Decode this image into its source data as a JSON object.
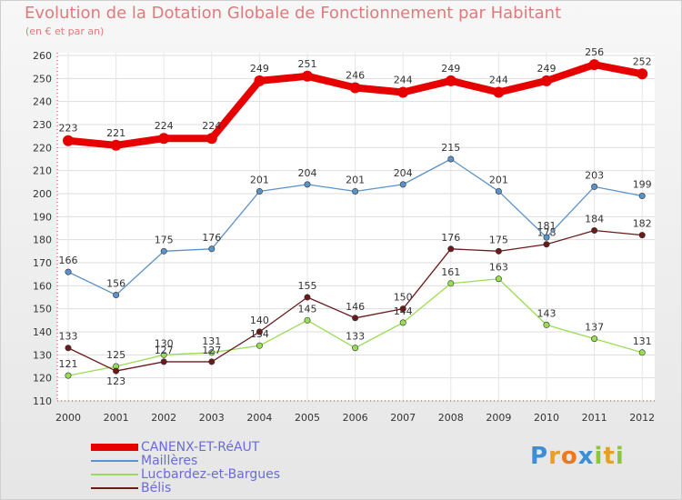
{
  "title": "Evolution de la Dotation Globale de Fonctionnement par Habitant",
  "subtitle": "(en € et par an)",
  "chart_data": {
    "type": "line",
    "x": [
      "2000",
      "2001",
      "2002",
      "2003",
      "2004",
      "2005",
      "2006",
      "2007",
      "2008",
      "2009",
      "2010",
      "2011",
      "2012"
    ],
    "ylim": [
      110,
      260
    ],
    "yticks": [
      110,
      120,
      130,
      140,
      150,
      160,
      170,
      180,
      190,
      200,
      210,
      220,
      230,
      240,
      250,
      260
    ],
    "grid": true,
    "series": [
      {
        "name": "CANENX-ET-RéAUT",
        "color": "#e60000",
        "values": [
          223,
          221,
          224,
          224,
          249,
          251,
          246,
          244,
          249,
          244,
          249,
          256,
          252
        ]
      },
      {
        "name": "Maillères",
        "color": "#5b93c8",
        "values": [
          166,
          156,
          175,
          176,
          201,
          204,
          201,
          204,
          215,
          201,
          181,
          203,
          199
        ]
      },
      {
        "name": "Lucbardez-et-Bargues",
        "color": "#99dd55",
        "values": [
          121,
          125,
          130,
          131,
          134,
          145,
          133,
          144,
          161,
          163,
          143,
          137,
          131
        ]
      },
      {
        "name": "Bélis",
        "color": "#6b1a1a",
        "values": [
          133,
          123,
          127,
          127,
          140,
          155,
          146,
          150,
          176,
          175,
          178,
          184,
          182
        ]
      }
    ]
  },
  "logo": {
    "letters": [
      "P",
      "r",
      "o",
      "x",
      "i",
      "t",
      "i"
    ],
    "colors": [
      "#3a8fd6",
      "#e8a020",
      "#f07818",
      "#3a8fd6",
      "#8cc63f",
      "#e8a020",
      "#8cc63f"
    ]
  }
}
